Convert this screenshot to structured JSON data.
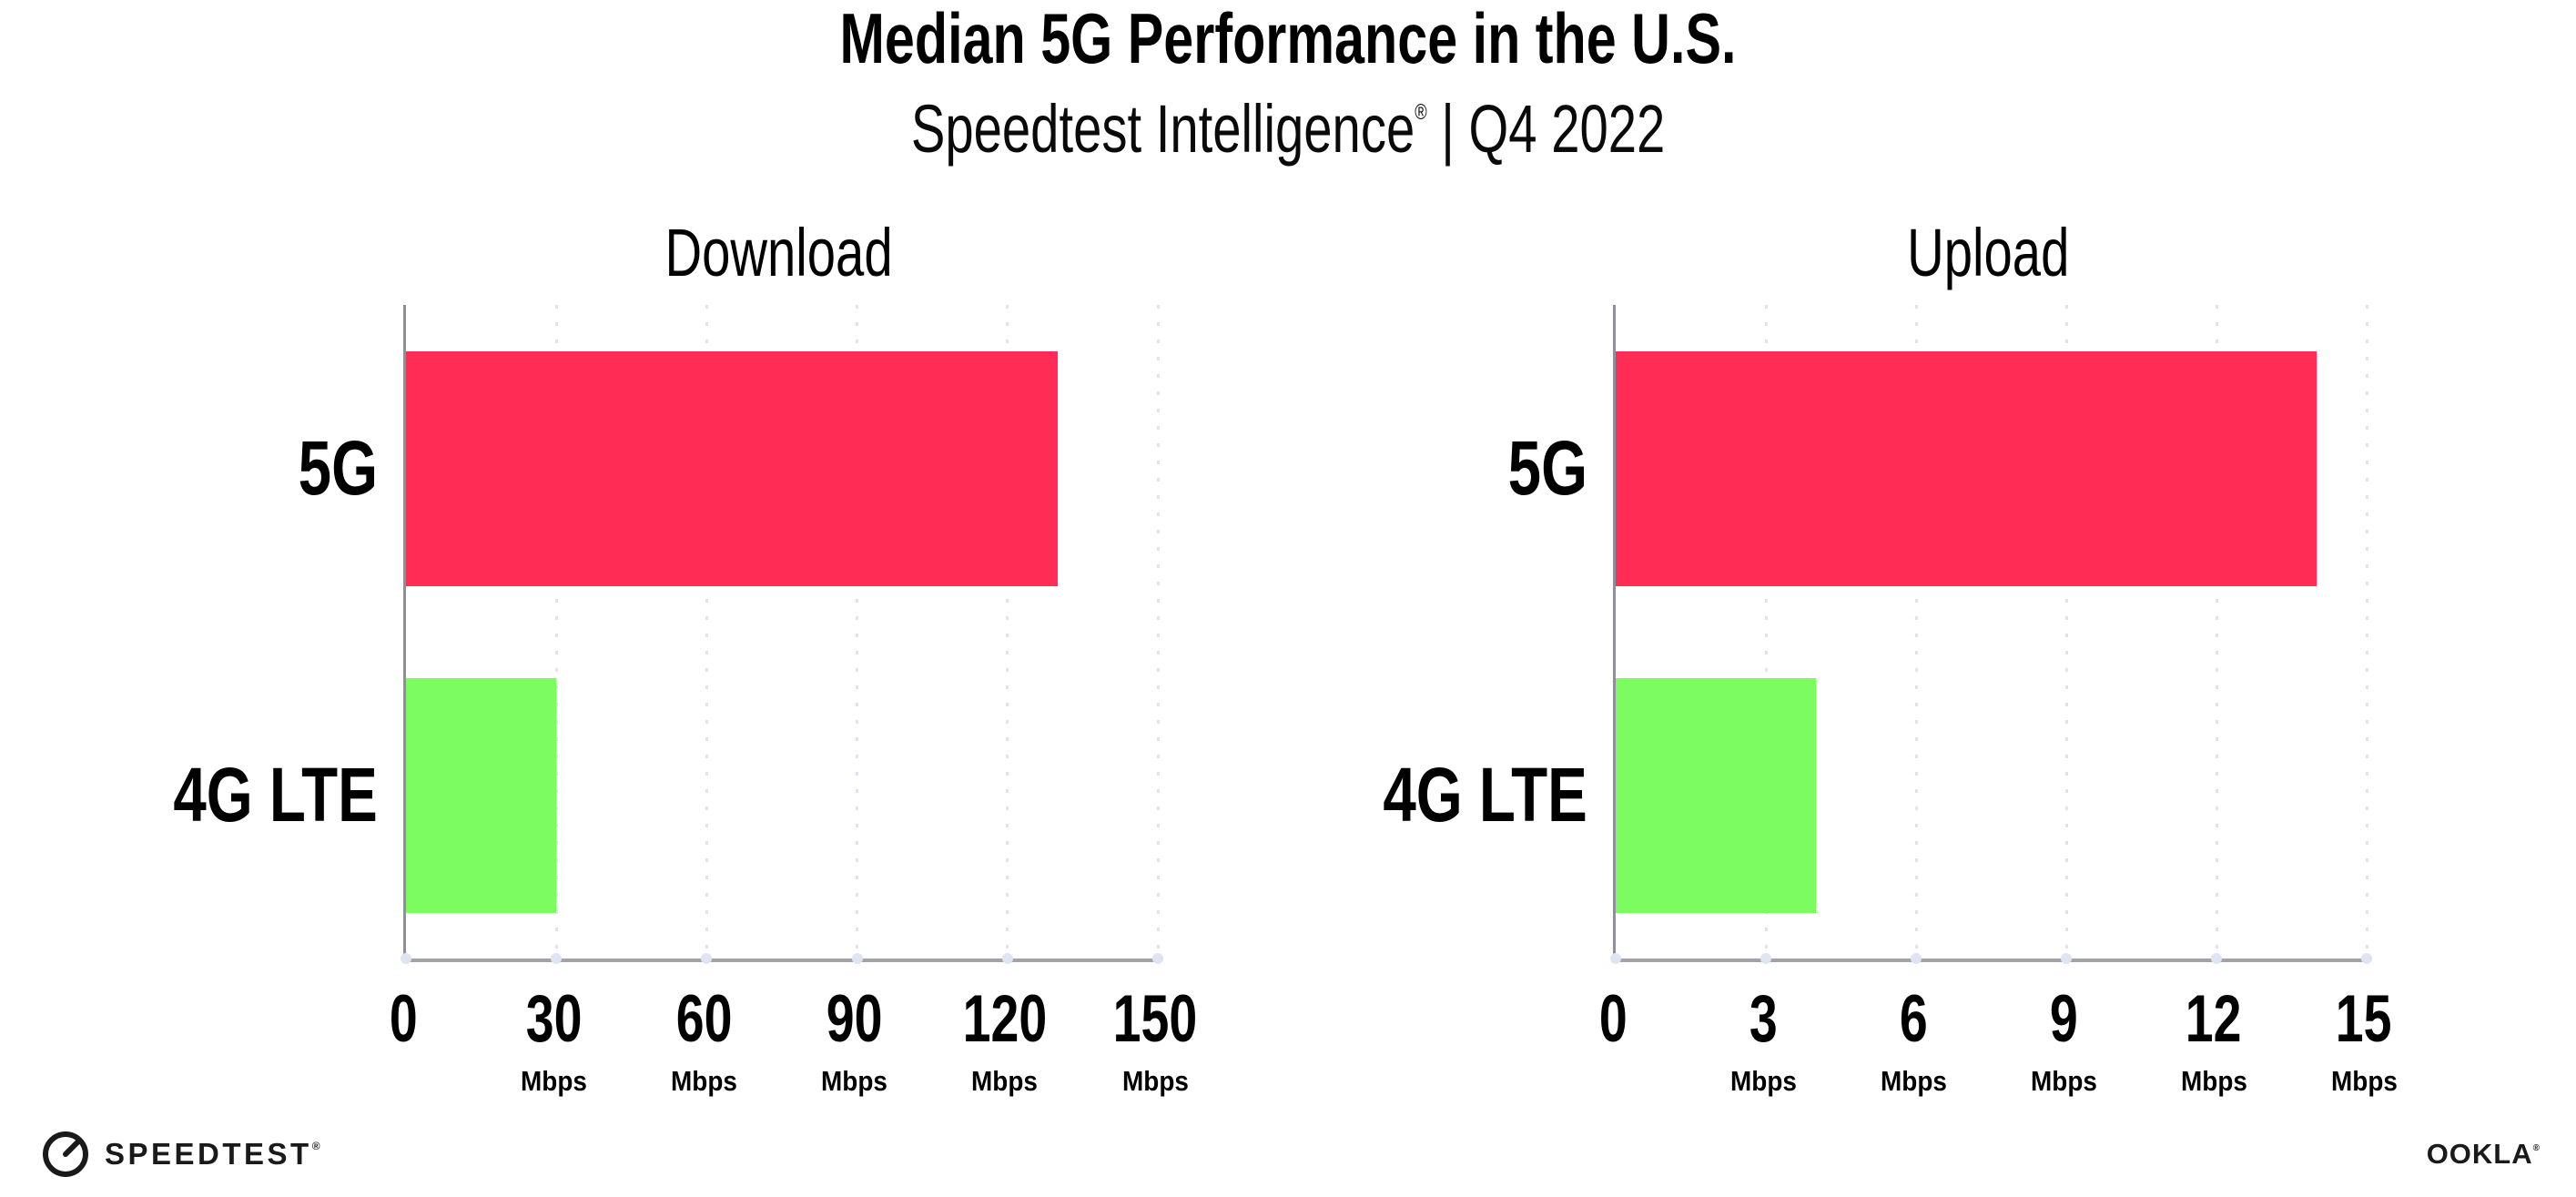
{
  "header": {
    "title": "Median 5G Performance in the U.S.",
    "subtitle_brand": "Speedtest Intelligence",
    "subtitle_mark": "®",
    "subtitle_rest": " | Q4 2022"
  },
  "chart_data": [
    {
      "type": "bar",
      "orientation": "horizontal",
      "title": "Download",
      "categories": [
        "5G",
        "4G LTE"
      ],
      "values": [
        130,
        30
      ],
      "unit": "Mbps",
      "xticks": [
        0,
        30,
        60,
        90,
        120,
        150
      ],
      "xlim": [
        0,
        150
      ],
      "bar_colors": [
        "#FF2D55",
        "#7DFC62"
      ],
      "grid": "vertical-dotted",
      "legend": "none"
    },
    {
      "type": "bar",
      "orientation": "horizontal",
      "title": "Upload",
      "categories": [
        "5G",
        "4G LTE"
      ],
      "values": [
        14,
        4
      ],
      "unit": "Mbps",
      "xticks": [
        0,
        3,
        6,
        9,
        12,
        15
      ],
      "xlim": [
        0,
        15
      ],
      "bar_colors": [
        "#FF2D55",
        "#7DFC62"
      ],
      "grid": "vertical-dotted",
      "legend": "none"
    }
  ],
  "colors": {
    "bar_5g": "#FF2D55",
    "bar_4g_lte": "#7DFC62",
    "axis": "#a2a2a8",
    "grid_dots": "#e2e2ec",
    "tick_base_dot": "#dfe4f2",
    "text": "#000000"
  },
  "footer": {
    "speedtest": "SPEEDTEST",
    "speedtest_mark": "®",
    "ookla": "OOKLA",
    "ookla_mark": "®"
  }
}
